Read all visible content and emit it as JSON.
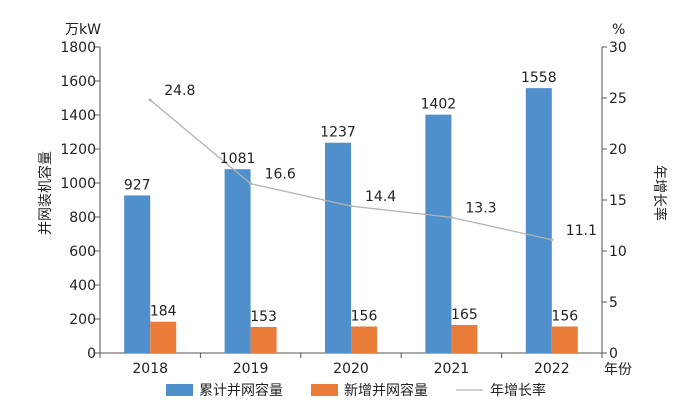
{
  "chart_data": {
    "type": "bar",
    "categories": [
      "2018",
      "2019",
      "2020",
      "2021",
      "2022"
    ],
    "series": [
      {
        "name": "累计并网容量",
        "kind": "bar",
        "axis": "left",
        "color": "#4f8fcc",
        "values": [
          927,
          1081,
          1237,
          1402,
          1558
        ]
      },
      {
        "name": "新增并网容量",
        "kind": "bar",
        "axis": "left",
        "color": "#ea7c3a",
        "values": [
          184,
          153,
          156,
          165,
          156
        ]
      },
      {
        "name": "年增长率",
        "kind": "line",
        "axis": "right",
        "color": "#b3b3b3",
        "values": [
          24.8,
          16.6,
          14.4,
          13.3,
          11.1
        ]
      }
    ],
    "xlabel": "年份",
    "ylabel": "并网装机容量",
    "ylabel_unit": "万kW",
    "y2label": "年增长率",
    "y2label_unit": "%",
    "ylim": [
      0,
      1800
    ],
    "yticks": [
      "0",
      "200",
      "400",
      "600",
      "800",
      "1000",
      "1200",
      "1400",
      "1600",
      "1800"
    ],
    "y2lim": [
      0,
      30
    ],
    "y2ticks": [
      "0",
      "5",
      "10",
      "15",
      "20",
      "25",
      "30"
    ],
    "legend_position": "bottom",
    "grid": false
  }
}
